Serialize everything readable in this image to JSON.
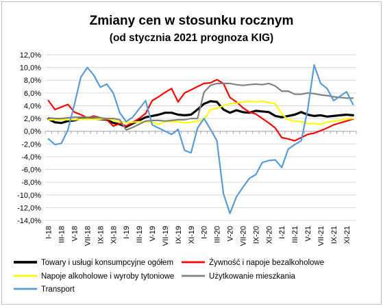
{
  "chart_data": {
    "type": "line",
    "title": "Zmiany cen w stosunku rocznym",
    "subtitle": "(od stycznia 2021 prognoza KIG)",
    "xlabel": "",
    "ylabel": "",
    "ylim": [
      -14,
      12
    ],
    "yticks": [
      "12,0%",
      "10,0%",
      "8,0%",
      "6,0%",
      "4,0%",
      "2,0%",
      "0,0%",
      "-2,0%",
      "-4,0%",
      "-6,0%",
      "-8,0%",
      "-10,0%",
      "-12,0%",
      "-14,0%"
    ],
    "x": [
      "I-18",
      "II-18",
      "III-18",
      "IV-18",
      "V-18",
      "VI-18",
      "VII-18",
      "VIII-18",
      "IX-18",
      "X-18",
      "XI-18",
      "XII-18",
      "I-19",
      "II-19",
      "III-19",
      "IV-19",
      "V-19",
      "VI-19",
      "VII-19",
      "VIII-19",
      "IX-19",
      "X-19",
      "XI-19",
      "XII-19",
      "I-20",
      "II-20",
      "III-20",
      "IV-20",
      "V-20",
      "VI-20",
      "VII-20",
      "VIII-20",
      "IX-20",
      "X-20",
      "XI-20",
      "XII-20",
      "I-21",
      "II-21",
      "III-21",
      "IV-21",
      "V-21",
      "VI-21",
      "VII-21",
      "VIII-21",
      "IX-21",
      "X-21",
      "XI-21",
      "XII-21"
    ],
    "xticks": [
      "I-18",
      "III-18",
      "V-18",
      "VII-18",
      "IX-18",
      "XI-18",
      "I-19",
      "III-19",
      "V-19",
      "VII-19",
      "IX-19",
      "XI-19",
      "I-20",
      "III-20",
      "V-20",
      "VII-20",
      "IX-20",
      "XI-20",
      "I-21",
      "III-21",
      "V-21",
      "VII-21",
      "IX-21",
      "XI-21"
    ],
    "grid": true,
    "legend_position": "bottom",
    "series": [
      {
        "name": "Towary i usługi konsumpcyjne ogółem",
        "color": "#000000",
        "width": 3.2,
        "values": [
          1.9,
          1.4,
          1.3,
          1.6,
          1.7,
          2.0,
          2.0,
          2.0,
          1.9,
          1.8,
          1.3,
          1.1,
          0.7,
          1.2,
          1.7,
          2.2,
          2.4,
          2.6,
          2.9,
          2.9,
          2.6,
          2.5,
          2.6,
          3.4,
          4.3,
          4.7,
          4.6,
          3.4,
          2.9,
          3.3,
          3.0,
          2.9,
          3.2,
          3.1,
          3.0,
          2.4,
          2.2,
          2.4,
          2.6,
          3.0,
          2.6,
          2.4,
          2.5,
          2.3,
          2.4,
          2.5,
          2.6,
          2.5
        ]
      },
      {
        "name": "Żywność i napoje bezalkoholowe",
        "color": "#ff0000",
        "width": 2.2,
        "values": [
          4.8,
          3.4,
          3.8,
          4.2,
          3.0,
          2.6,
          2.1,
          2.4,
          2.1,
          1.8,
          0.8,
          1.2,
          0.8,
          1.4,
          2.0,
          2.8,
          4.8,
          5.4,
          6.1,
          6.7,
          4.6,
          6.0,
          6.5,
          7.0,
          7.5,
          7.6,
          8.1,
          7.5,
          5.3,
          4.6,
          3.7,
          3.0,
          2.7,
          2.0,
          1.3,
          0.5,
          -1.0,
          -1.2,
          -1.5,
          -1.0,
          -0.5,
          -0.3,
          0.1,
          0.5,
          1.0,
          1.3,
          1.6,
          1.9
        ]
      },
      {
        "name": "Napoje alkoholowe i wyroby tytoniowe",
        "color": "#ffff00",
        "width": 2.2,
        "values": [
          1.8,
          1.8,
          1.8,
          1.8,
          1.8,
          1.9,
          1.9,
          1.9,
          1.9,
          2.0,
          1.7,
          1.5,
          1.4,
          1.4,
          1.5,
          1.5,
          1.4,
          1.1,
          1.5,
          1.5,
          1.5,
          1.3,
          1.4,
          1.6,
          1.8,
          3.4,
          3.6,
          4.0,
          4.3,
          4.4,
          4.6,
          4.7,
          4.6,
          4.7,
          4.5,
          4.3,
          2.7,
          1.8,
          1.6,
          1.5,
          1.2,
          1.2,
          1.1,
          1.4,
          1.6,
          1.7,
          1.9,
          2.0
        ]
      },
      {
        "name": "Użytkowanie mieszkania",
        "color": "#808080",
        "width": 2.2,
        "values": [
          2.1,
          2.0,
          2.0,
          2.1,
          2.2,
          2.2,
          2.2,
          2.2,
          2.1,
          2.0,
          2.0,
          1.8,
          0.2,
          0.6,
          1.1,
          1.6,
          1.7,
          1.7,
          1.6,
          1.7,
          1.8,
          1.8,
          2.0,
          2.0,
          6.1,
          7.2,
          7.5,
          7.5,
          7.5,
          7.3,
          7.2,
          7.3,
          7.4,
          7.3,
          7.5,
          7.1,
          6.3,
          6.3,
          5.8,
          5.8,
          6.0,
          5.9,
          5.7,
          5.6,
          5.4,
          5.3,
          5.2,
          5.2
        ]
      },
      {
        "name": "Transport",
        "color": "#5b9bd5",
        "width": 2.2,
        "values": [
          -1.2,
          -2.1,
          -1.9,
          0.2,
          4.2,
          8.5,
          10.0,
          8.8,
          6.9,
          7.4,
          6.0,
          2.9,
          1.5,
          2.2,
          3.5,
          4.8,
          1.0,
          0.5,
          0.0,
          -0.5,
          0.3,
          -3.0,
          -3.4,
          0.5,
          2.0,
          0.3,
          -1.5,
          -9.8,
          -12.9,
          -10.3,
          -8.8,
          -7.4,
          -6.8,
          -4.9,
          -4.6,
          -4.5,
          -5.7,
          -2.8,
          -2.1,
          -1.5,
          3.4,
          10.4,
          7.5,
          6.7,
          4.8,
          5.5,
          6.2,
          4.2
        ]
      }
    ]
  }
}
